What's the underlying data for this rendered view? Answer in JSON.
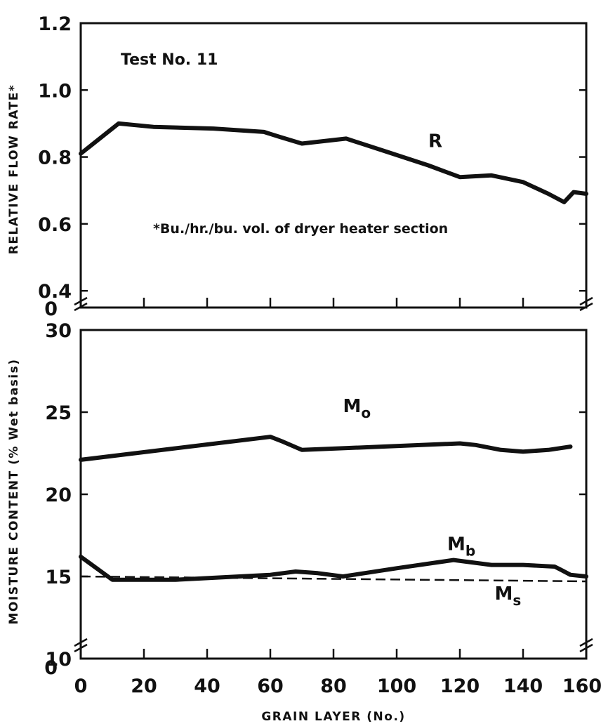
{
  "chart_data": [
    {
      "type": "line",
      "title": "",
      "annotation": "Test No. 11",
      "footnote": "*Bu./hr./bu. vol. of dryer heater section",
      "xlabel": "",
      "ylabel": "RELATIVE FLOW RATE*",
      "xlim": [
        0,
        160
      ],
      "ylim": [
        0.35,
        1.2
      ],
      "y_break_label": "0",
      "yticks": [
        "0.4",
        "0.6",
        "0.8",
        "1.0",
        "1.2"
      ],
      "xticks": [
        0,
        20,
        40,
        60,
        80,
        100,
        120,
        140,
        160
      ],
      "grid": false,
      "series": [
        {
          "name": "R",
          "style": "solid",
          "x": [
            0,
            12,
            23,
            42,
            58,
            63,
            70,
            84,
            97,
            110,
            120,
            130,
            140,
            148,
            153,
            156,
            160
          ],
          "y": [
            0.81,
            0.9,
            0.89,
            0.885,
            0.875,
            0.86,
            0.84,
            0.855,
            0.815,
            0.775,
            0.74,
            0.745,
            0.725,
            0.69,
            0.665,
            0.695,
            0.69
          ]
        }
      ]
    },
    {
      "type": "line",
      "title": "",
      "xlabel": "GRAIN LAYER (No.)",
      "ylabel": "MOISTURE CONTENT (% Wet basis)",
      "xlim": [
        0,
        160
      ],
      "ylim": [
        10,
        30
      ],
      "y_break_label": "0",
      "yticks": [
        "10",
        "15",
        "20",
        "25",
        "30"
      ],
      "xtick_labels": [
        "0",
        "20",
        "40",
        "60",
        "80",
        "100",
        "120",
        "140",
        "160"
      ],
      "grid": false,
      "series": [
        {
          "name": "Mo",
          "style": "solid",
          "x": [
            0,
            60,
            64,
            70,
            120,
            125,
            133,
            140,
            148,
            155
          ],
          "y": [
            22.1,
            23.5,
            23.2,
            22.7,
            23.1,
            23.0,
            22.7,
            22.6,
            22.7,
            22.9
          ]
        },
        {
          "name": "Mb",
          "style": "solid",
          "x": [
            0,
            10,
            30,
            60,
            68,
            75,
            83,
            100,
            118,
            130,
            140,
            150,
            152,
            155,
            160
          ],
          "y": [
            16.2,
            14.8,
            14.8,
            15.1,
            15.3,
            15.2,
            15.0,
            15.5,
            16.0,
            15.7,
            15.7,
            15.6,
            15.4,
            15.1,
            15.0
          ]
        },
        {
          "name": "Ms",
          "style": "dashed",
          "x": [
            0,
            160
          ],
          "y": [
            15.0,
            14.7
          ]
        }
      ]
    }
  ]
}
